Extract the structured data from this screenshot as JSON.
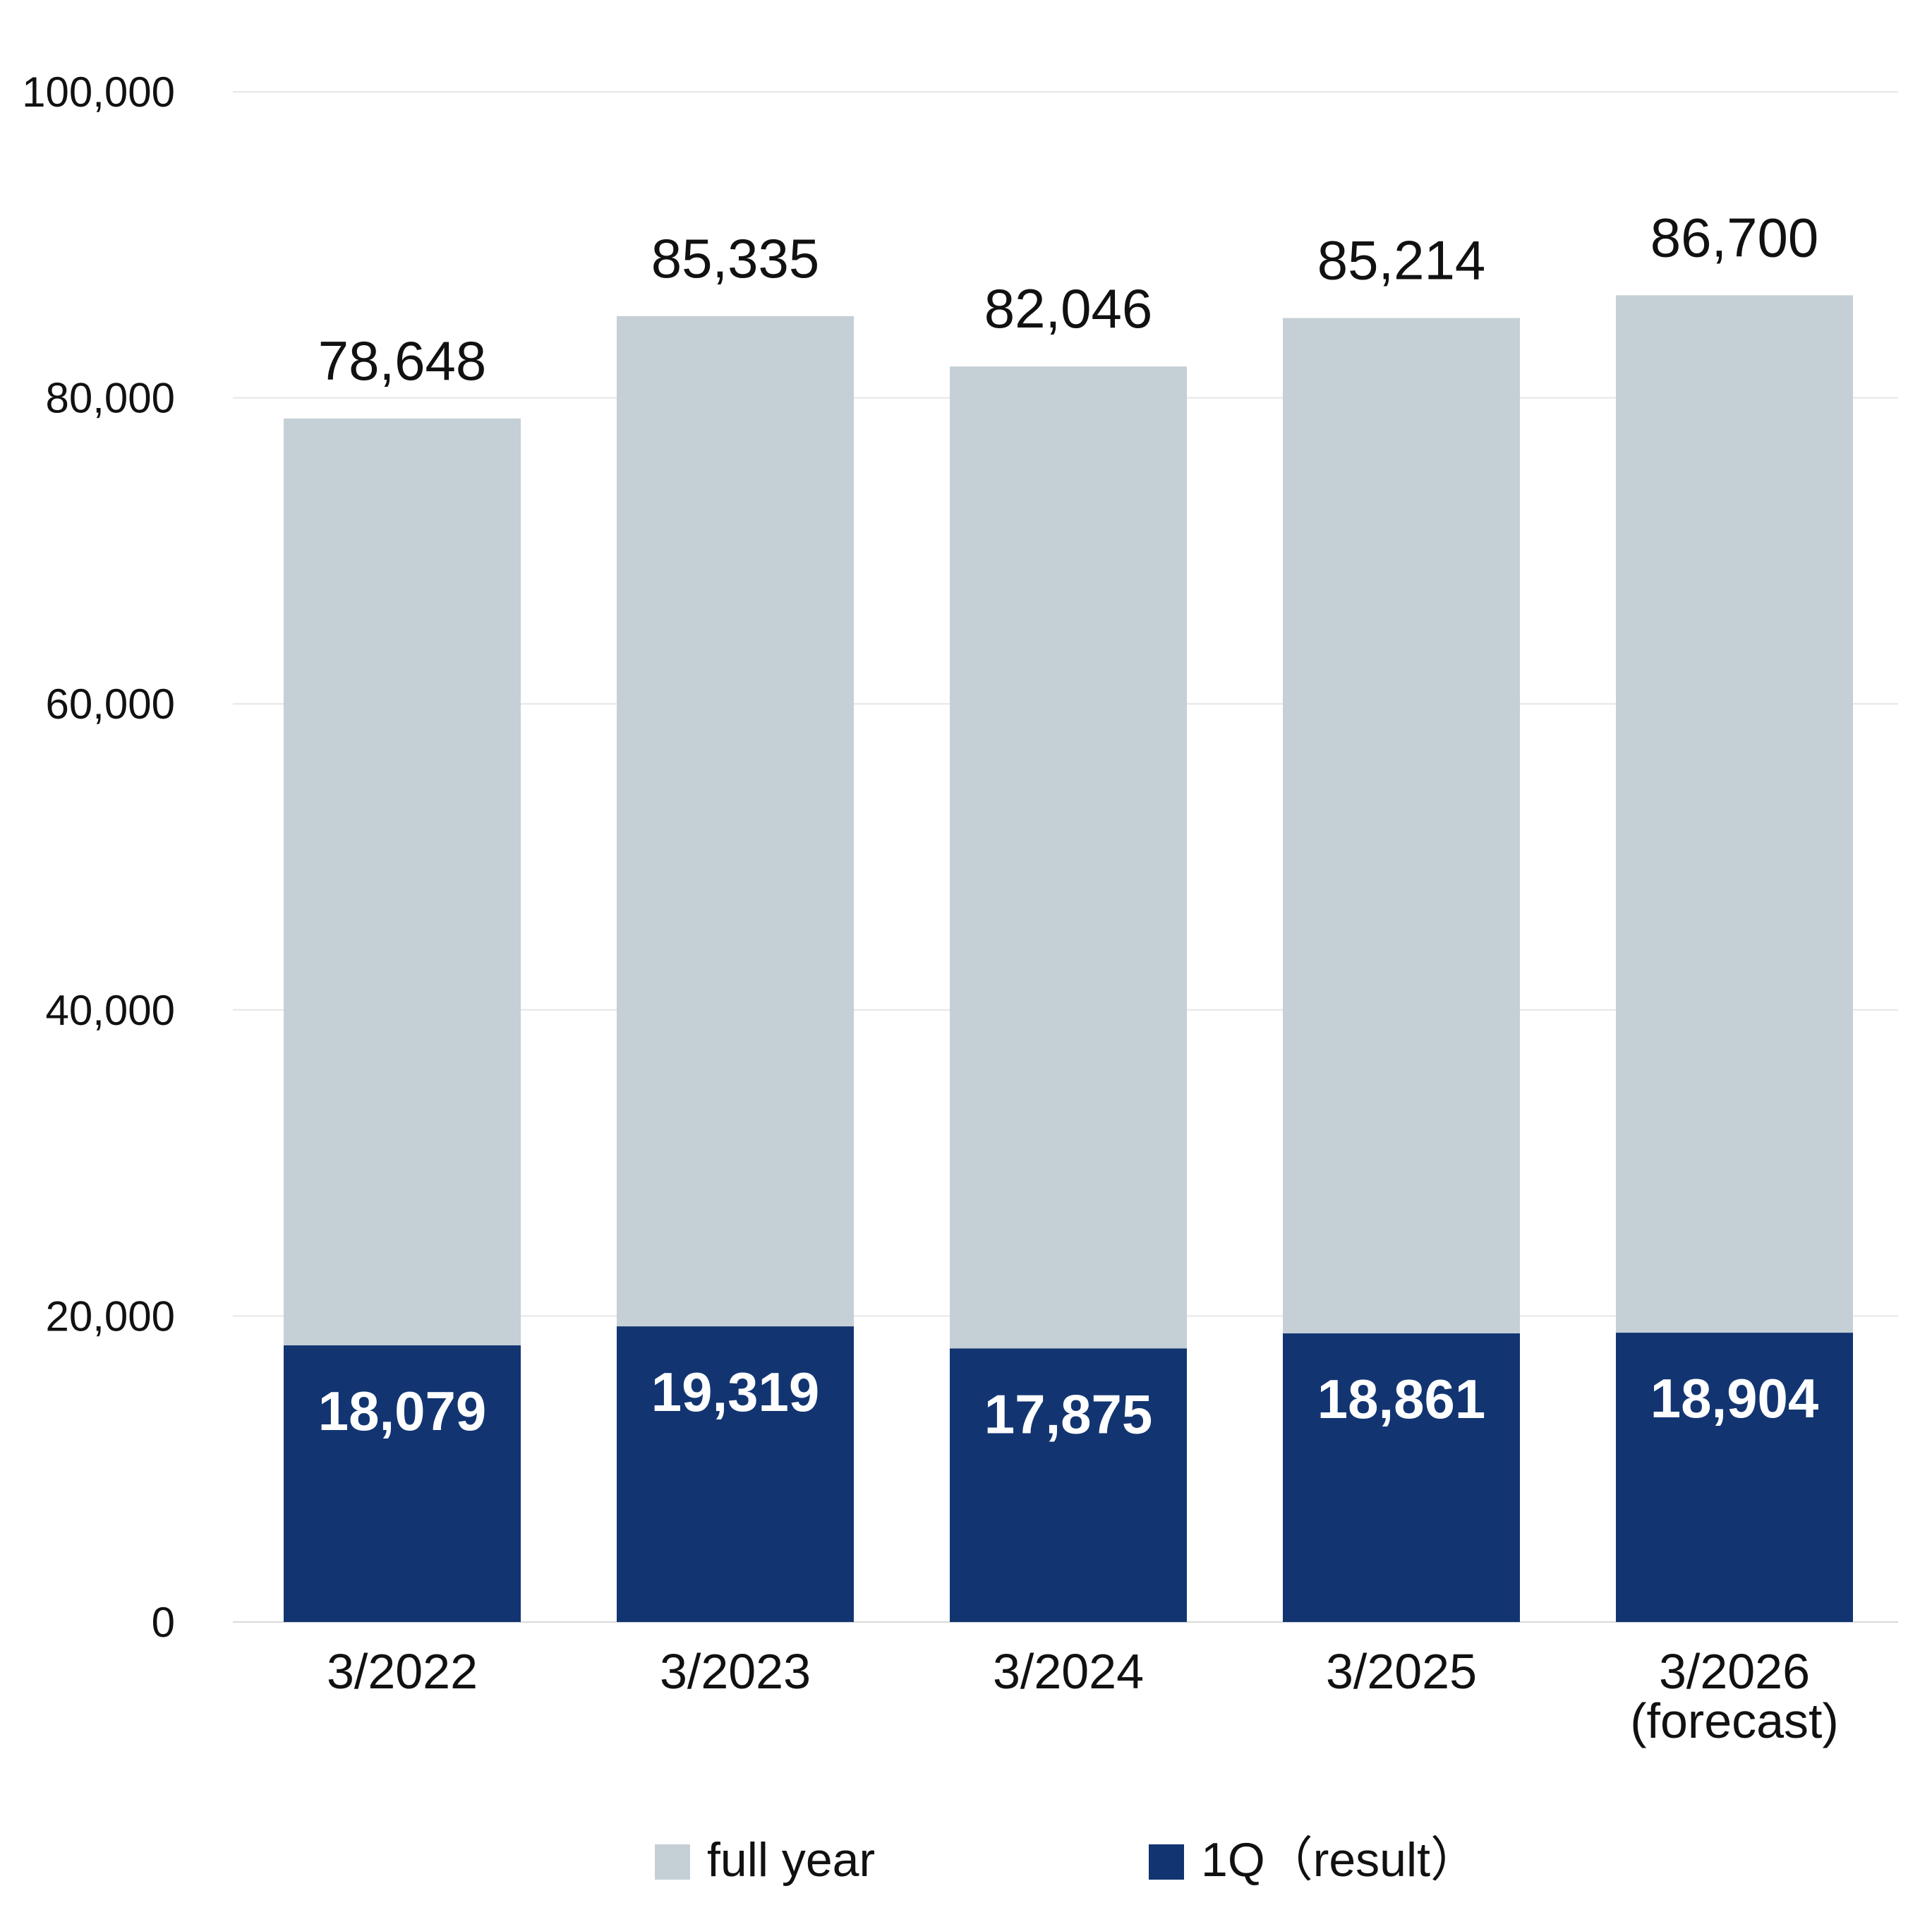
{
  "chart_data": {
    "type": "bar",
    "stacked": false,
    "categories": [
      "3/2022",
      "3/2023",
      "3/2024",
      "3/2025",
      "3/2026\n(forecast)"
    ],
    "series": [
      {
        "name": "full year",
        "color": "#c5cfd6",
        "values": [
          78648,
          85335,
          82046,
          85214,
          86700
        ],
        "labels": [
          "78,648",
          "85,335",
          "82,046",
          "85,214",
          "86,700"
        ]
      },
      {
        "name": "1Q（result）",
        "color": "#123572",
        "values": [
          18079,
          19319,
          17875,
          18861,
          18904
        ],
        "labels": [
          "18,079",
          "19,319",
          "17,875",
          "18,861",
          "18,904"
        ]
      }
    ],
    "ylim": [
      0,
      100000
    ],
    "yticks": [
      0,
      20000,
      40000,
      60000,
      80000,
      100000
    ],
    "ytick_labels": [
      "0",
      "20,000",
      "40,000",
      "60,000",
      "80,000",
      "100,000"
    ],
    "grid": true,
    "legend_position": "bottom",
    "title": "",
    "xlabel": "",
    "ylabel": ""
  }
}
